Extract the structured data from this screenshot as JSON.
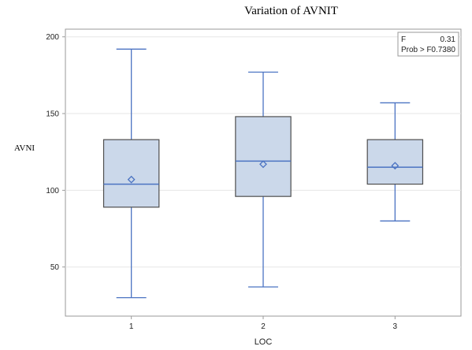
{
  "chart_data": {
    "type": "box",
    "title": "Variation of  AVNIT",
    "xlabel": "LOC",
    "ylabel": "AVNI",
    "ylim": [
      18,
      205
    ],
    "yticks": [
      50,
      100,
      150,
      200
    ],
    "categories": [
      "1",
      "2",
      "3"
    ],
    "boxes": [
      {
        "category": "1",
        "min": 30,
        "q1": 89,
        "median": 104,
        "q3": 133,
        "max": 192,
        "mean": 107
      },
      {
        "category": "2",
        "min": 37,
        "q1": 96,
        "median": 119,
        "q3": 148,
        "max": 177,
        "mean": 117
      },
      {
        "category": "3",
        "min": 80,
        "q1": 104,
        "median": 115,
        "q3": 133,
        "max": 157,
        "mean": 116
      }
    ],
    "inset": {
      "rows": [
        {
          "label": "F",
          "value": "0.31"
        },
        {
          "label": "Prob > F",
          "value": "0.7380"
        }
      ]
    },
    "colors": {
      "box_fill": "#cbd8ea",
      "box_stroke": "#4e4e4e",
      "whisker": "#4b73c2",
      "median": "#4b73c2",
      "mean_marker": "#4b73c2",
      "grid": "#e6e6e6",
      "frame": "#9a9a9a"
    }
  }
}
